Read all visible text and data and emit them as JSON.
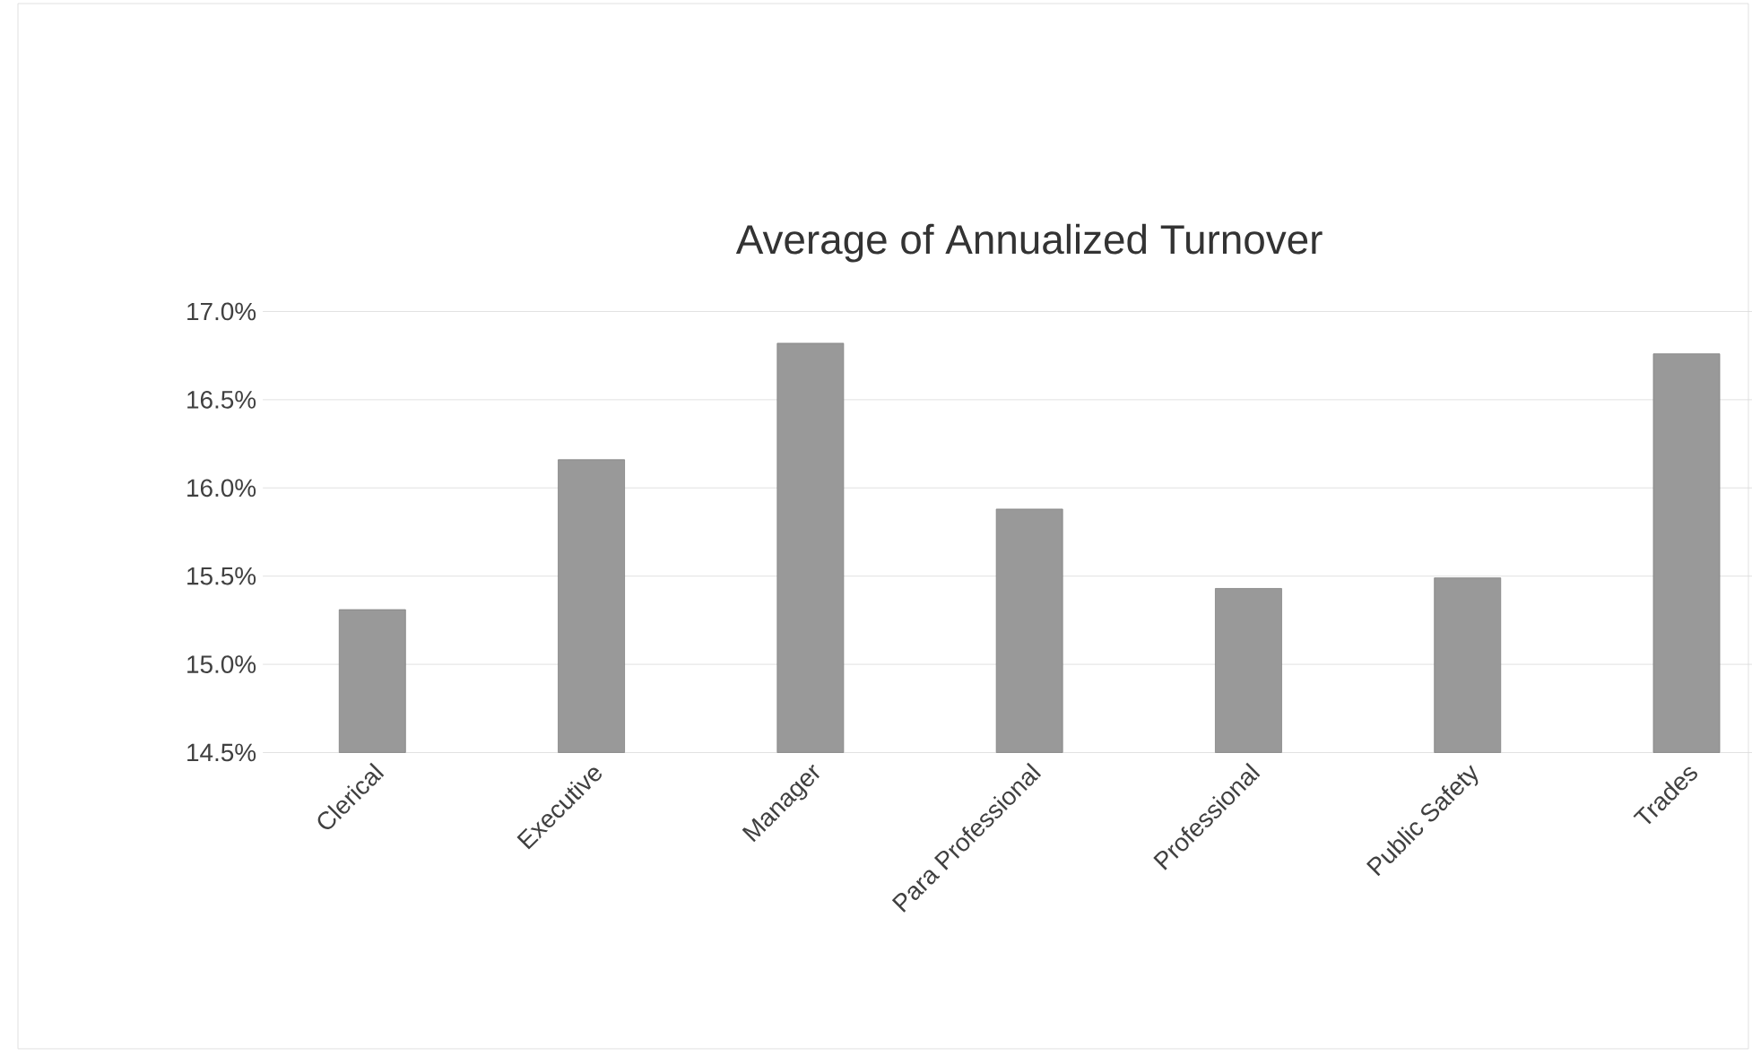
{
  "chart_data": {
    "type": "bar",
    "title": "Average of Annualized Turnover",
    "categories": [
      "Clerical",
      "Executive",
      "Manager",
      "Para Professional",
      "Professional",
      "Public Safety",
      "Trades"
    ],
    "values": [
      15.31,
      16.16,
      16.82,
      15.88,
      15.43,
      15.49,
      16.76
    ],
    "color": "#999999",
    "ylim": [
      14.5,
      17.0
    ],
    "yticks": [
      {
        "value": 14.5,
        "label": "14.5%"
      },
      {
        "value": 15.0,
        "label": "15.0%"
      },
      {
        "value": 15.5,
        "label": "15.5%"
      },
      {
        "value": 16.0,
        "label": "16.0%"
      },
      {
        "value": 16.5,
        "label": "16.5%"
      },
      {
        "value": 17.0,
        "label": "17.0%"
      }
    ],
    "grid": "y"
  }
}
